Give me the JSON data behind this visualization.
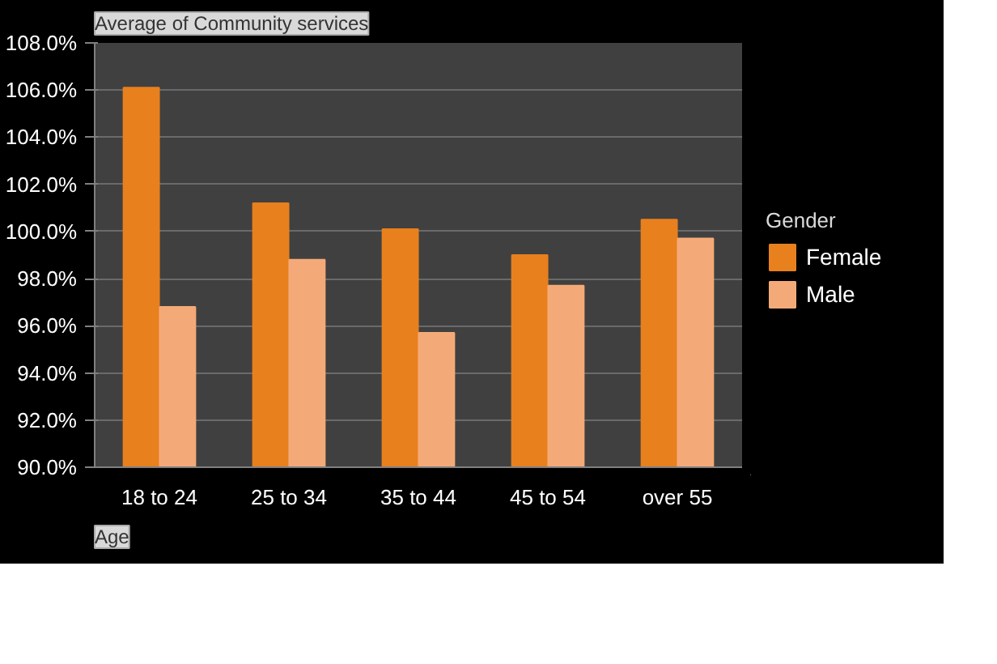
{
  "chart_data": {
    "type": "bar",
    "title": "Average of Community services",
    "xlabel": "Age",
    "legend_title": "Gender",
    "categories": [
      "18 to 24",
      "25 to 34",
      "35 to 44",
      "45 to 54",
      "over 55"
    ],
    "series": [
      {
        "name": "Female",
        "color": "#e8801e",
        "values": [
          106.1,
          101.2,
          100.1,
          99.0,
          100.5
        ]
      },
      {
        "name": "Male",
        "color": "#f4aa78",
        "values": [
          96.8,
          98.8,
          95.7,
          97.7,
          99.7
        ]
      }
    ],
    "ylim": [
      90,
      108
    ],
    "yticks": [
      {
        "value": 90,
        "label": "90.0%"
      },
      {
        "value": 92,
        "label": "92.0%"
      },
      {
        "value": 94,
        "label": "94.0%"
      },
      {
        "value": 96,
        "label": "96.0%"
      },
      {
        "value": 98,
        "label": "98.0%"
      },
      {
        "value": 100,
        "label": "100.0%"
      },
      {
        "value": 102,
        "label": "102.0%"
      },
      {
        "value": 104,
        "label": "104.0%"
      },
      {
        "value": 106,
        "label": "106.0%"
      },
      {
        "value": 108,
        "label": "108.0%"
      }
    ],
    "grid": "y",
    "legend": "right"
  }
}
